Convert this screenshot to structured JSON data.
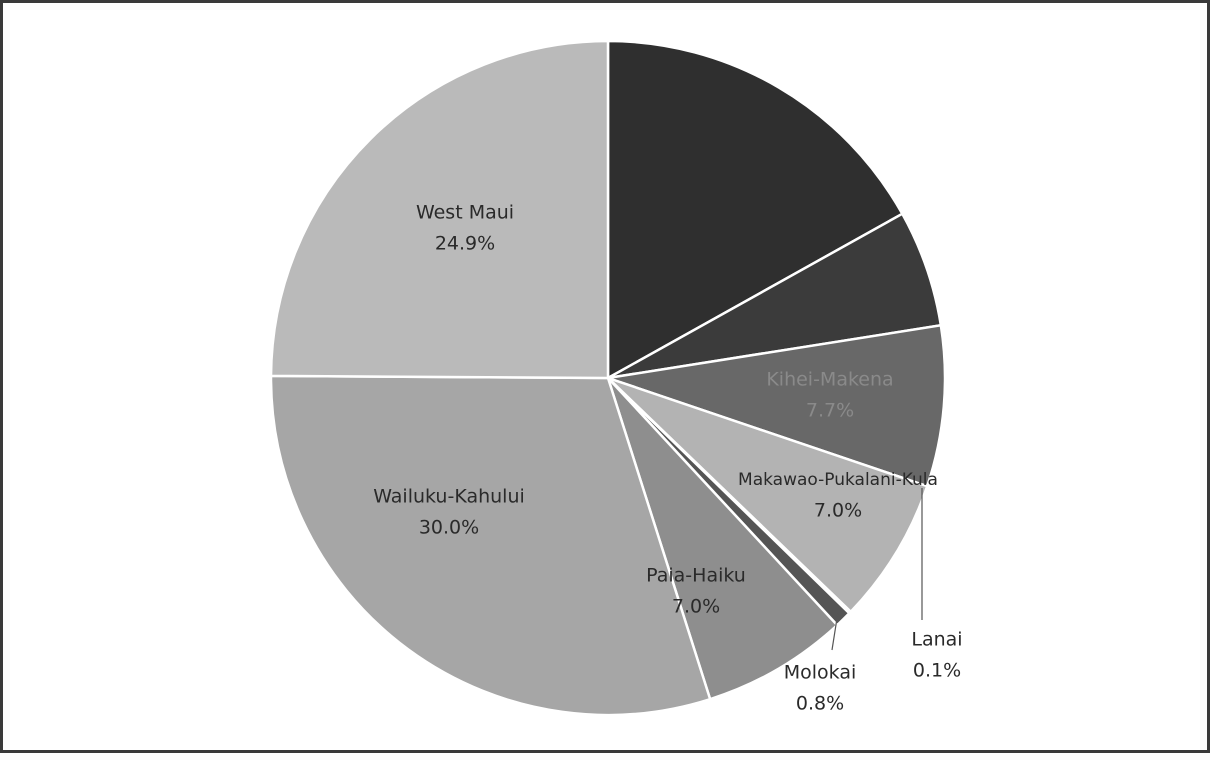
{
  "chart_data": {
    "type": "pie",
    "categories": [
      null,
      null,
      "Kihei-Makena",
      "Makawao-Pukalani-Kula",
      "Lanai",
      "Molokai",
      "Paia-Haiku",
      "Wailuku-Kahului",
      "West Maui"
    ],
    "values": [
      16.9,
      5.6,
      7.7,
      7.0,
      0.1,
      0.8,
      7.0,
      30.0,
      24.9
    ],
    "value_labels": [
      null,
      null,
      "7.7%",
      "7.0%",
      "0.1%",
      "0.8%",
      "7.0%",
      "30.0%",
      "24.9%"
    ],
    "colors": [
      "#2f2f2f",
      "#3b3b3b",
      "#686868",
      "#b3b3b3",
      "#8a8a8a",
      "#555555",
      "#8e8e8e",
      "#a6a6a6",
      "#bababa"
    ]
  }
}
